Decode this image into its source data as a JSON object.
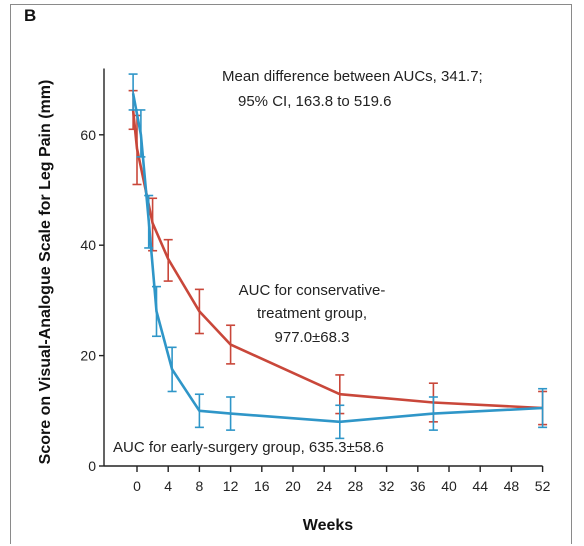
{
  "panel_label": "B",
  "chart_data": {
    "type": "line",
    "title": "",
    "xlabel": "Weeks",
    "ylabel": "Score on Visual-Analogue Scale for Leg Pain (mm)",
    "xlim": [
      -2,
      52
    ],
    "ylim": [
      0,
      72
    ],
    "x_ticks": [
      0,
      4,
      8,
      12,
      16,
      20,
      24,
      28,
      32,
      36,
      40,
      44,
      48,
      52
    ],
    "y_ticks": [
      0,
      20,
      40,
      60
    ],
    "grid": false,
    "series": [
      {
        "color": "#c9473a",
        "x": [
          -0.5,
          0,
          2,
          4,
          8,
          12,
          26,
          38,
          52
        ],
        "y": [
          64.5,
          57.5,
          44.0,
          37.5,
          28.0,
          22.0,
          13.0,
          11.5,
          10.5
        ],
        "err_low": [
          61.0,
          51.0,
          39.0,
          33.5,
          24.0,
          18.5,
          9.5,
          8.0,
          7.5
        ],
        "err_high": [
          68.0,
          63.5,
          48.5,
          41.0,
          32.0,
          25.5,
          16.5,
          15.0,
          13.5
        ]
      },
      {
        "color": "#2f96c8",
        "x": [
          -0.5,
          0.5,
          1.5,
          2.5,
          4.5,
          8,
          12,
          26,
          38,
          52
        ],
        "y": [
          67.5,
          60.0,
          44.5,
          28.0,
          17.5,
          10.0,
          9.5,
          8.0,
          9.5,
          10.5
        ],
        "err_low": [
          64.5,
          56.0,
          39.5,
          23.5,
          13.5,
          7.0,
          6.5,
          5.0,
          6.5,
          7.0
        ],
        "err_high": [
          71.0,
          64.5,
          49.0,
          32.5,
          21.5,
          13.0,
          12.5,
          11.0,
          12.5,
          14.0
        ]
      }
    ],
    "annotations": {
      "mean_diff_line1": "Mean difference between AUCs, 341.7;",
      "mean_diff_line2": "95% CI, 163.8 to 519.6",
      "conservative_line1": "AUC for conservative-",
      "conservative_line2": "treatment group,",
      "conservative_line3": "977.0±68.3",
      "early_surgery": "AUC for early-surgery group, 635.3±58.6"
    }
  }
}
